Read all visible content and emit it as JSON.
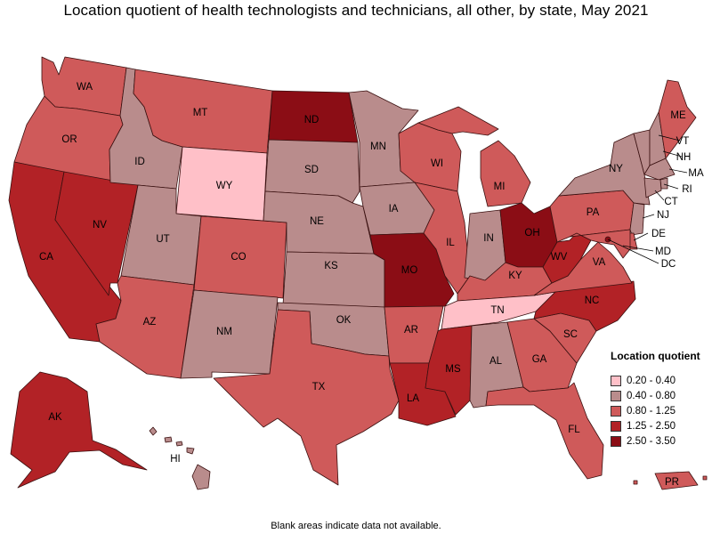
{
  "title": "Location quotient of health technologists and technicians, all other, by state, May 2021",
  "footnote": "Blank areas indicate data not available.",
  "legend": {
    "title": "Location quotient",
    "items": [
      {
        "label": "0.20 - 0.40",
        "color": "#ffc0c8"
      },
      {
        "label": "0.40 - 0.80",
        "color": "#b98c8c"
      },
      {
        "label": "0.80 - 1.25",
        "color": "#cf5a5a"
      },
      {
        "label": "1.25 - 2.50",
        "color": "#b22226"
      },
      {
        "label": "2.50 - 3.50",
        "color": "#8b0d15"
      }
    ]
  },
  "states": {
    "WA": {
      "label": "WA",
      "class": 2
    },
    "OR": {
      "label": "OR",
      "class": 2
    },
    "CA": {
      "label": "CA",
      "class": 3
    },
    "NV": {
      "label": "NV",
      "class": 3
    },
    "ID": {
      "label": "ID",
      "class": 1
    },
    "MT": {
      "label": "MT",
      "class": 2
    },
    "WY": {
      "label": "WY",
      "class": 0
    },
    "UT": {
      "label": "UT",
      "class": 1
    },
    "AZ": {
      "label": "AZ",
      "class": 2
    },
    "CO": {
      "label": "CO",
      "class": 2
    },
    "NM": {
      "label": "NM",
      "class": 1
    },
    "ND": {
      "label": "ND",
      "class": 4
    },
    "SD": {
      "label": "SD",
      "class": 1
    },
    "NE": {
      "label": "NE",
      "class": 1
    },
    "KS": {
      "label": "KS",
      "class": 1
    },
    "OK": {
      "label": "OK",
      "class": 1
    },
    "TX": {
      "label": "TX",
      "class": 2
    },
    "MN": {
      "label": "MN",
      "class": 1
    },
    "IA": {
      "label": "IA",
      "class": 1
    },
    "MO": {
      "label": "MO",
      "class": 4
    },
    "AR": {
      "label": "AR",
      "class": 2
    },
    "LA": {
      "label": "LA",
      "class": 3
    },
    "WI": {
      "label": "WI",
      "class": 2
    },
    "IL": {
      "label": "IL",
      "class": 2
    },
    "MI": {
      "label": "MI",
      "class": 2
    },
    "IN": {
      "label": "IN",
      "class": 1
    },
    "OH": {
      "label": "OH",
      "class": 4
    },
    "KY": {
      "label": "KY",
      "class": 2
    },
    "TN": {
      "label": "TN",
      "class": 0
    },
    "MS": {
      "label": "MS",
      "class": 3
    },
    "AL": {
      "label": "AL",
      "class": 1
    },
    "GA": {
      "label": "GA",
      "class": 2
    },
    "FL": {
      "label": "FL",
      "class": 2
    },
    "SC": {
      "label": "SC",
      "class": 2
    },
    "NC": {
      "label": "NC",
      "class": 3
    },
    "VA": {
      "label": "VA",
      "class": 2
    },
    "WV": {
      "label": "WV",
      "class": 3
    },
    "PA": {
      "label": "PA",
      "class": 2
    },
    "NY": {
      "label": "NY",
      "class": 1
    },
    "ME": {
      "label": "ME",
      "class": 2
    },
    "VT": {
      "label": "VT",
      "class": 1
    },
    "NH": {
      "label": "NH",
      "class": 1
    },
    "MA": {
      "label": "MA",
      "class": 1
    },
    "RI": {
      "label": "RI",
      "class": 1
    },
    "CT": {
      "label": "CT",
      "class": 1
    },
    "NJ": {
      "label": "NJ",
      "class": 1
    },
    "DE": {
      "label": "DE",
      "class": 2
    },
    "MD": {
      "label": "MD",
      "class": 2
    },
    "DC": {
      "label": "DC",
      "class": 4
    },
    "AK": {
      "label": "AK",
      "class": 3
    },
    "HI": {
      "label": "HI",
      "class": 1
    },
    "PR": {
      "label": "PR",
      "class": 2
    }
  }
}
